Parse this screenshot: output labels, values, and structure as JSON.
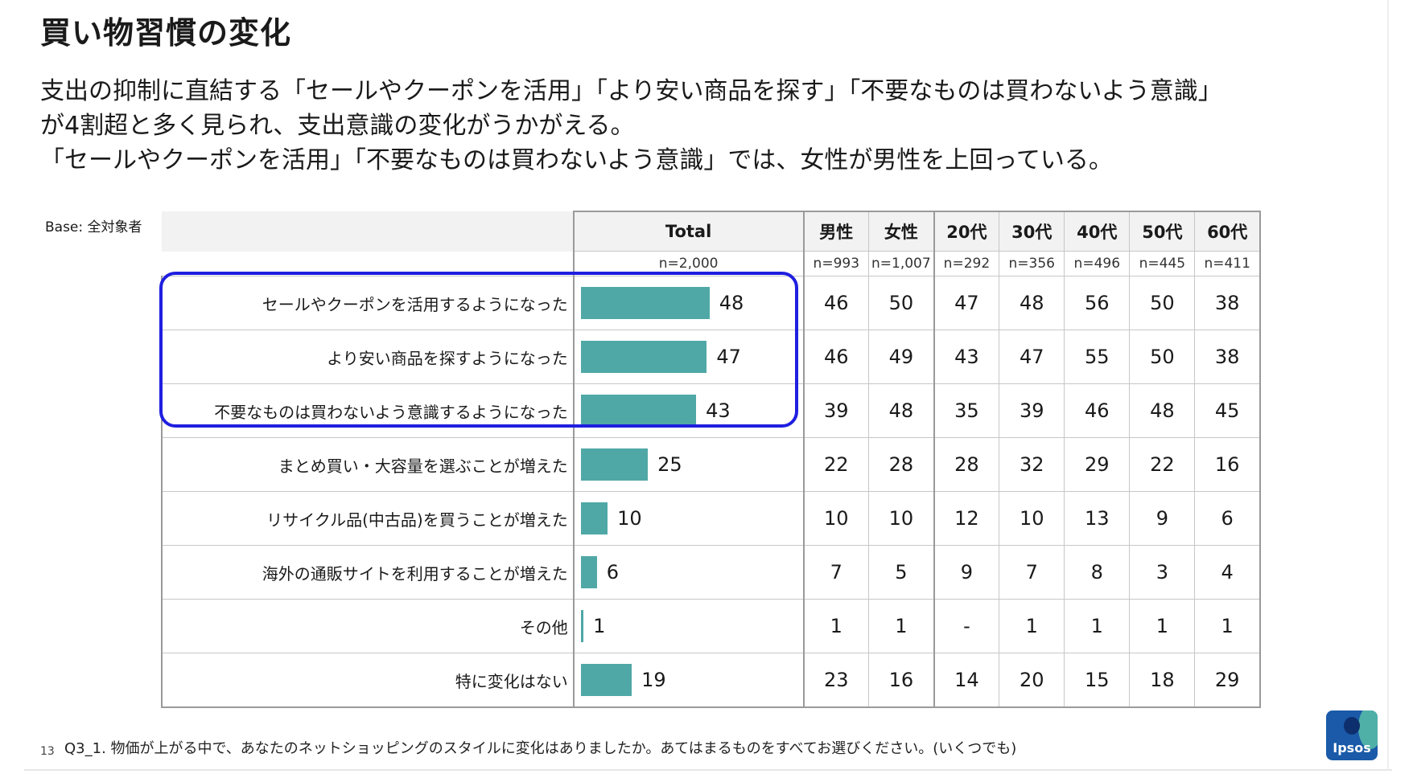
{
  "slide": {
    "title": "買い物習慣の変化",
    "lead_lines": [
      "支出の抑制に直結する「セールやクーポンを活用」「より安い商品を探す」「不要なものは買わないよう意識」",
      "が4割超と多く見られ、支出意識の変化がうかがえる。",
      "「セールやクーポンを活用」「不要なものは買わないよう意識」では、女性が男性を上回っている。"
    ],
    "base_note": "Base: 全対象者",
    "unit_label": "(%)",
    "page_number": "13",
    "question": "Q3_1. 物価が上がる中で、あなたのネットショッピングのスタイルに変化はありましたか。あてはまるものをすべてお選びください。(いくつでも)",
    "logo_text": "Ipsos"
  },
  "chart_data": {
    "type": "bar",
    "orientation": "horizontal",
    "xlim": [
      0,
      60
    ],
    "bar_color": "#4fa8a6",
    "highlight_color": "#1f1fe0",
    "highlighted_rows": [
      0,
      1,
      2
    ],
    "total_column": {
      "header": "Total",
      "n": "n=2,000"
    },
    "segments": [
      {
        "name": "男性",
        "n": "n=993"
      },
      {
        "name": "女性",
        "n": "n=1,007"
      },
      {
        "name": "20代",
        "n": "n=292"
      },
      {
        "name": "30代",
        "n": "n=356"
      },
      {
        "name": "40代",
        "n": "n=496"
      },
      {
        "name": "50代",
        "n": "n=445"
      },
      {
        "name": "60代",
        "n": "n=411"
      }
    ],
    "rows": [
      {
        "label": "セールやクーポンを活用するようになった",
        "total": 48,
        "values": [
          "46",
          "50",
          "47",
          "48",
          "56",
          "50",
          "38"
        ]
      },
      {
        "label": "より安い商品を探すようになった",
        "total": 47,
        "values": [
          "46",
          "49",
          "43",
          "47",
          "55",
          "50",
          "38"
        ]
      },
      {
        "label": "不要なものは買わないよう意識するようになった",
        "total": 43,
        "values": [
          "39",
          "48",
          "35",
          "39",
          "46",
          "48",
          "45"
        ]
      },
      {
        "label": "まとめ買い・大容量を選ぶことが増えた",
        "total": 25,
        "values": [
          "22",
          "28",
          "28",
          "32",
          "29",
          "22",
          "16"
        ]
      },
      {
        "label": "リサイクル品(中古品)を買うことが増えた",
        "total": 10,
        "values": [
          "10",
          "10",
          "12",
          "10",
          "13",
          "9",
          "6"
        ]
      },
      {
        "label": "海外の通販サイトを利用することが増えた",
        "total": 6,
        "values": [
          "7",
          "5",
          "9",
          "7",
          "8",
          "3",
          "4"
        ]
      },
      {
        "label": "その他",
        "total": 1,
        "values": [
          "1",
          "1",
          "-",
          "1",
          "1",
          "1",
          "1"
        ]
      },
      {
        "label": "特に変化はない",
        "total": 19,
        "values": [
          "23",
          "16",
          "14",
          "20",
          "15",
          "18",
          "29"
        ]
      }
    ]
  }
}
